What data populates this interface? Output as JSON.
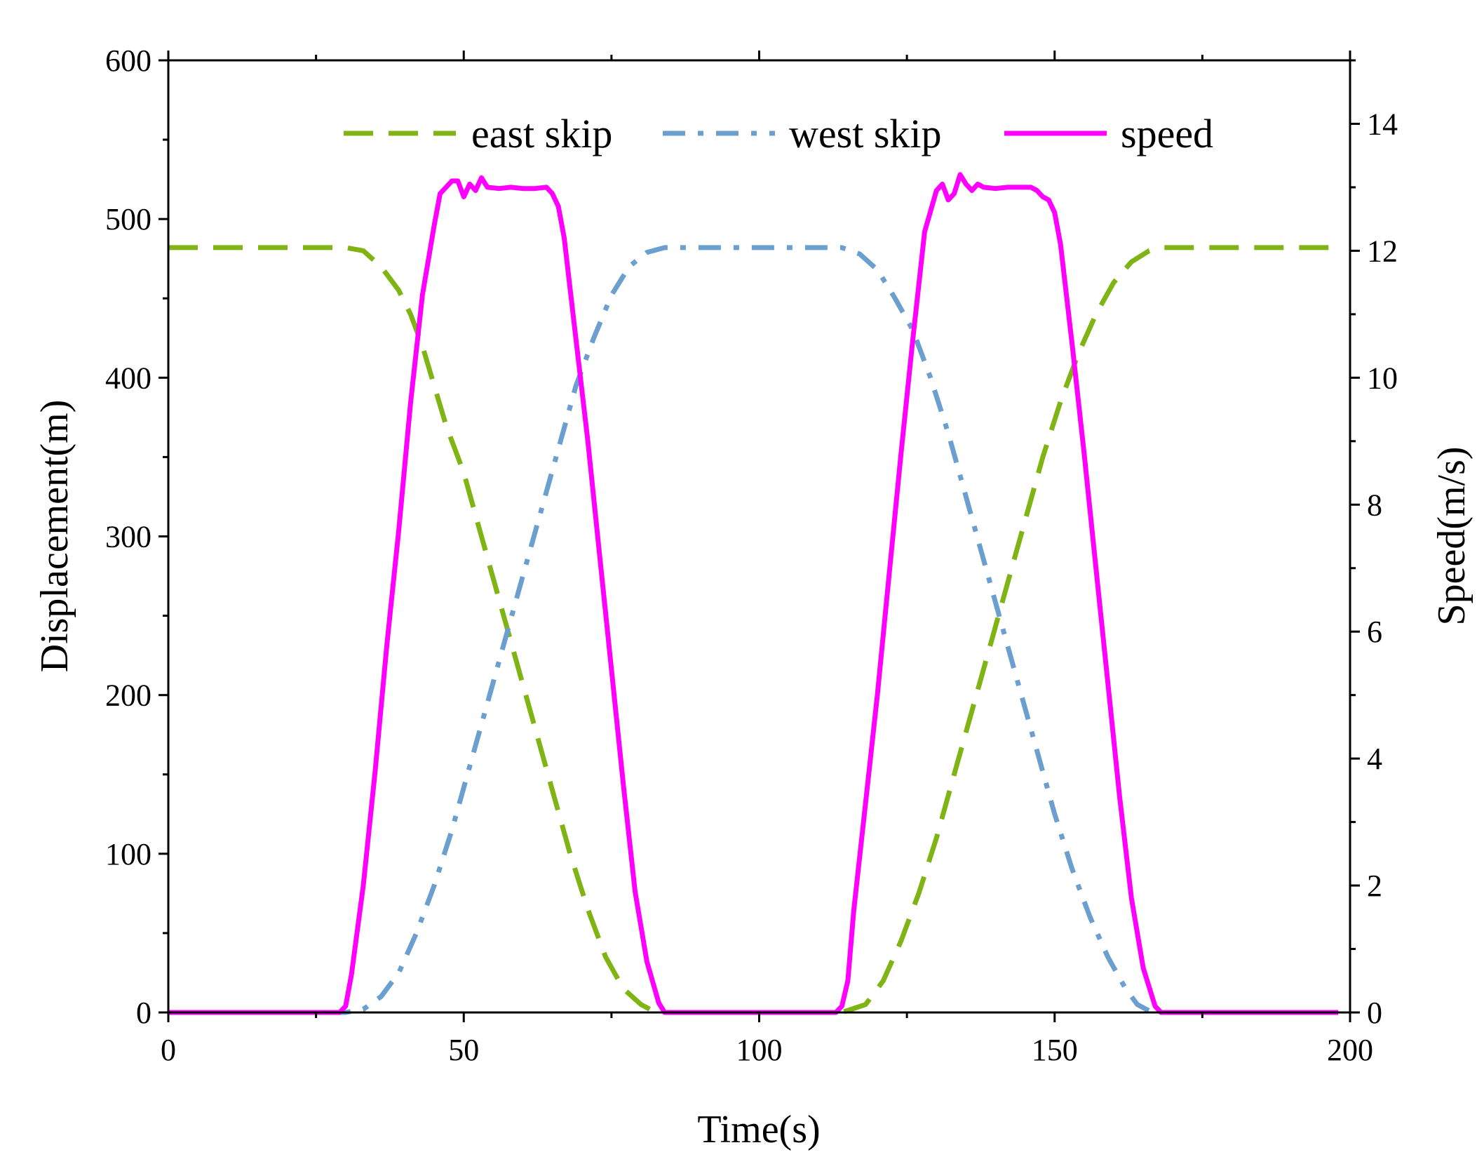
{
  "chart_data": {
    "type": "line",
    "title": "",
    "xlabel": "Time(s)",
    "ylabel": "Displacement(m)",
    "y2label": "Speed(m/s)",
    "xlim": [
      0,
      200
    ],
    "ylim": [
      0,
      600
    ],
    "y2lim": [
      0,
      15
    ],
    "x_ticks": [
      0,
      50,
      100,
      150,
      200
    ],
    "y_ticks": [
      0,
      100,
      200,
      300,
      400,
      500,
      600
    ],
    "y2_ticks": [
      0,
      2,
      4,
      6,
      8,
      10,
      12,
      14
    ],
    "grid": false,
    "legend_position": "top",
    "series": [
      {
        "name": "east skip",
        "axis": "left",
        "color": "#7fb414",
        "style": "dashed",
        "points": [
          [
            0,
            482
          ],
          [
            30,
            482
          ],
          [
            33,
            480
          ],
          [
            36,
            470
          ],
          [
            39,
            455
          ],
          [
            41,
            440
          ],
          [
            43,
            420
          ],
          [
            45,
            395
          ],
          [
            47,
            370
          ],
          [
            50,
            340
          ],
          [
            53,
            300
          ],
          [
            56,
            260
          ],
          [
            59,
            220
          ],
          [
            62,
            180
          ],
          [
            65,
            140
          ],
          [
            68,
            100
          ],
          [
            71,
            65
          ],
          [
            74,
            35
          ],
          [
            77,
            15
          ],
          [
            80,
            5
          ],
          [
            82,
            1
          ],
          [
            84,
            0
          ],
          [
            114,
            0
          ],
          [
            118,
            5
          ],
          [
            121,
            20
          ],
          [
            124,
            45
          ],
          [
            127,
            75
          ],
          [
            130,
            110
          ],
          [
            133,
            150
          ],
          [
            136,
            190
          ],
          [
            139,
            230
          ],
          [
            142,
            270
          ],
          [
            145,
            310
          ],
          [
            148,
            350
          ],
          [
            151,
            385
          ],
          [
            154,
            415
          ],
          [
            157,
            440
          ],
          [
            160,
            460
          ],
          [
            163,
            473
          ],
          [
            166,
            480
          ],
          [
            168,
            482
          ],
          [
            198,
            482
          ]
        ]
      },
      {
        "name": "west skip",
        "axis": "left",
        "color": "#6b9fd0",
        "style": "dashdot",
        "points": [
          [
            0,
            0
          ],
          [
            30,
            0
          ],
          [
            33,
            2
          ],
          [
            36,
            10
          ],
          [
            39,
            25
          ],
          [
            42,
            50
          ],
          [
            45,
            80
          ],
          [
            48,
            115
          ],
          [
            51,
            155
          ],
          [
            54,
            195
          ],
          [
            57,
            235
          ],
          [
            60,
            275
          ],
          [
            63,
            315
          ],
          [
            66,
            355
          ],
          [
            69,
            395
          ],
          [
            72,
            425
          ],
          [
            75,
            452
          ],
          [
            78,
            470
          ],
          [
            81,
            479
          ],
          [
            84,
            482
          ],
          [
            114,
            482
          ],
          [
            117,
            478
          ],
          [
            120,
            468
          ],
          [
            123,
            450
          ],
          [
            126,
            430
          ],
          [
            129,
            400
          ],
          [
            132,
            365
          ],
          [
            135,
            325
          ],
          [
            138,
            285
          ],
          [
            141,
            245
          ],
          [
            144,
            205
          ],
          [
            147,
            165
          ],
          [
            150,
            125
          ],
          [
            153,
            90
          ],
          [
            156,
            60
          ],
          [
            159,
            35
          ],
          [
            162,
            15
          ],
          [
            164,
            5
          ],
          [
            166,
            1
          ],
          [
            168,
            0
          ],
          [
            198,
            0
          ]
        ]
      },
      {
        "name": "speed",
        "axis": "right",
        "color": "#ff00ff",
        "style": "solid",
        "points": [
          [
            0,
            0
          ],
          [
            29,
            0
          ],
          [
            30,
            0.1
          ],
          [
            31,
            0.6
          ],
          [
            33,
            2
          ],
          [
            35,
            3.8
          ],
          [
            37,
            5.8
          ],
          [
            39,
            7.6
          ],
          [
            41,
            9.6
          ],
          [
            43,
            11.3
          ],
          [
            45,
            12.4
          ],
          [
            46,
            12.9
          ],
          [
            48,
            13.1
          ],
          [
            49,
            13.1
          ],
          [
            50,
            12.85
          ],
          [
            51,
            13.05
          ],
          [
            52,
            12.95
          ],
          [
            53,
            13.15
          ],
          [
            54,
            13.0
          ],
          [
            56,
            12.98
          ],
          [
            58,
            13.0
          ],
          [
            60,
            12.98
          ],
          [
            62,
            12.98
          ],
          [
            64,
            13.0
          ],
          [
            65,
            12.9
          ],
          [
            66,
            12.7
          ],
          [
            67,
            12.2
          ],
          [
            69,
            10.6
          ],
          [
            71,
            9.0
          ],
          [
            73,
            7.2
          ],
          [
            75,
            5.4
          ],
          [
            77,
            3.6
          ],
          [
            79,
            1.9
          ],
          [
            81,
            0.8
          ],
          [
            83,
            0.15
          ],
          [
            84,
            0
          ],
          [
            113,
            0
          ],
          [
            114,
            0.1
          ],
          [
            115,
            0.5
          ],
          [
            116,
            1.6
          ],
          [
            118,
            3.3
          ],
          [
            120,
            5.0
          ],
          [
            122,
            6.9
          ],
          [
            124,
            8.8
          ],
          [
            126,
            10.6
          ],
          [
            128,
            12.3
          ],
          [
            130,
            12.95
          ],
          [
            131,
            13.05
          ],
          [
            132,
            12.8
          ],
          [
            133,
            12.9
          ],
          [
            134,
            13.2
          ],
          [
            135,
            13.05
          ],
          [
            136,
            12.95
          ],
          [
            137,
            13.05
          ],
          [
            138,
            13.0
          ],
          [
            140,
            12.98
          ],
          [
            142,
            13.0
          ],
          [
            144,
            13.0
          ],
          [
            146,
            13.0
          ],
          [
            147,
            12.95
          ],
          [
            148,
            12.85
          ],
          [
            149,
            12.8
          ],
          [
            150,
            12.6
          ],
          [
            151,
            12.1
          ],
          [
            153,
            10.5
          ],
          [
            155,
            8.8
          ],
          [
            157,
            7.0
          ],
          [
            159,
            5.2
          ],
          [
            161,
            3.4
          ],
          [
            163,
            1.8
          ],
          [
            165,
            0.7
          ],
          [
            167,
            0.1
          ],
          [
            168,
            0
          ],
          [
            198,
            0
          ]
        ]
      }
    ]
  }
}
